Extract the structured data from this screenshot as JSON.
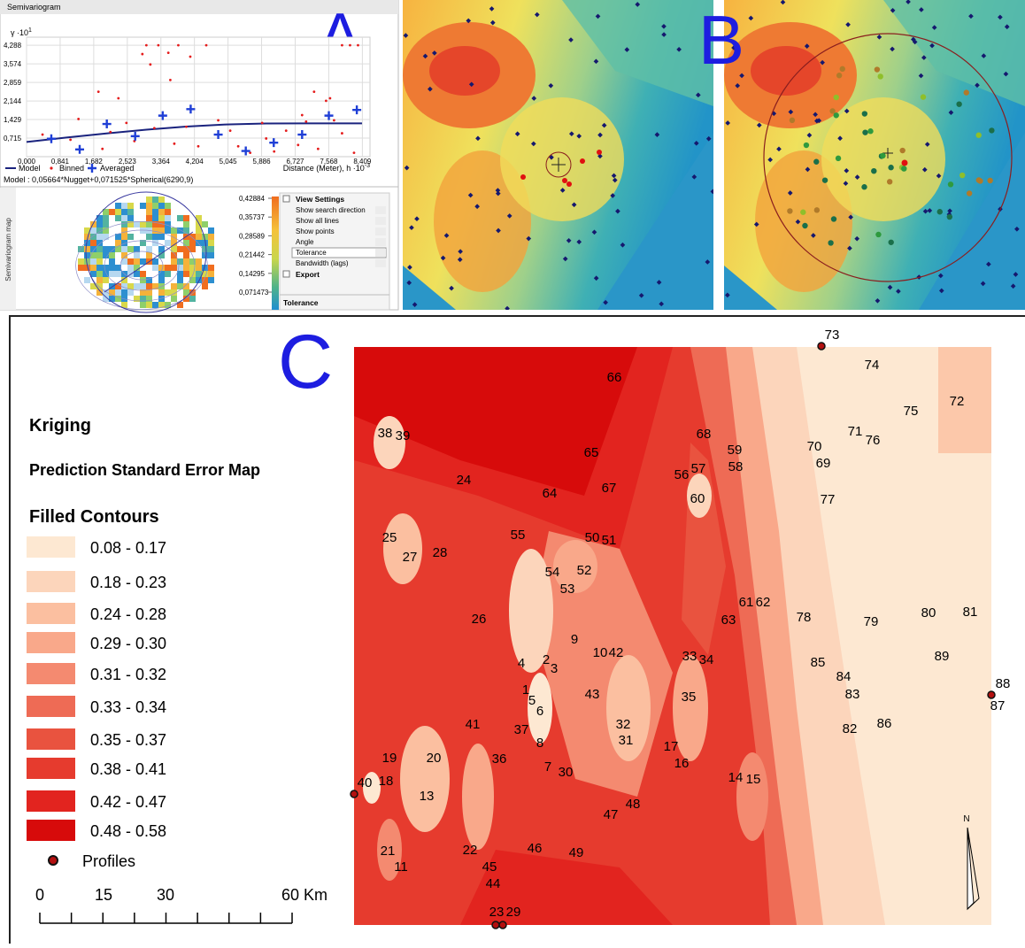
{
  "panel_letters": {
    "a": "A",
    "b": "B",
    "c": "C"
  },
  "chart_data": {
    "type": "scatter",
    "title": "Semivariogram",
    "ylabel": "γ ·10",
    "ylabel_exponent": "1",
    "xlabel": "Distance (Meter), h ·10",
    "xlabel_exponent": "-3",
    "xlim": [
      0,
      8.6
    ],
    "ylim": [
      0,
      4.6
    ],
    "grid": true,
    "xticks": [
      {
        "value": 0,
        "label": "0,000"
      },
      {
        "value": 0.841,
        "label": "0,841"
      },
      {
        "value": 1.682,
        "label": "1,682"
      },
      {
        "value": 2.523,
        "label": "2,523"
      },
      {
        "value": 3.364,
        "label": "3,364"
      },
      {
        "value": 4.204,
        "label": "4,204"
      },
      {
        "value": 5.045,
        "label": "5,045"
      },
      {
        "value": 5.886,
        "label": "5,886"
      },
      {
        "value": 6.727,
        "label": "6,727"
      },
      {
        "value": 7.568,
        "label": "7,568"
      },
      {
        "value": 8.409,
        "label": "8,409"
      }
    ],
    "yticks": [
      {
        "value": 0.715,
        "label": "0,715"
      },
      {
        "value": 1.429,
        "label": "1,429"
      },
      {
        "value": 2.144,
        "label": "2,144"
      },
      {
        "value": 2.859,
        "label": "2,859"
      },
      {
        "value": 3.574,
        "label": "3,574"
      },
      {
        "value": 4.288,
        "label": "4,288"
      }
    ],
    "series": [
      {
        "name": "Model",
        "color": "#1a237e",
        "x": [
          0,
          1,
          2,
          3,
          4,
          5,
          6,
          7,
          8.4
        ],
        "values": [
          0.5664,
          0.7355,
          0.896,
          1.0393,
          1.1567,
          1.2396,
          1.2794,
          1.2817,
          1.2817
        ]
      },
      {
        "name": "Binned",
        "color": "#e51c1c",
        "x": [
          3.0,
          3.3,
          3.8,
          4.5,
          7.9,
          8.1,
          8.3,
          2.9,
          3.55,
          4.1,
          3.1,
          1.8,
          2.3,
          3.6,
          7.2,
          7.5,
          7.6,
          1.3,
          2.5,
          3.2,
          4.0,
          5.1,
          5.9,
          6.5,
          7.0,
          7.7,
          7.9,
          0.4,
          1.1,
          1.9,
          2.7,
          3.7,
          4.3,
          5.3,
          5.6,
          6.2,
          6.8,
          7.3,
          8.2,
          4.8,
          6.0,
          2.1,
          6.9
        ],
        "values": [
          4.288,
          4.288,
          4.288,
          4.288,
          4.288,
          4.288,
          4.288,
          3.95,
          4.0,
          3.85,
          3.55,
          2.5,
          2.25,
          2.95,
          2.5,
          2.15,
          2.25,
          1.45,
          1.3,
          1.1,
          1.15,
          1.0,
          1.3,
          1.0,
          1.35,
          1.4,
          0.9,
          0.85,
          0.65,
          0.3,
          0.6,
          0.5,
          0.4,
          0.4,
          0.15,
          0.2,
          0.45,
          0.3,
          0.15,
          1.4,
          0.7,
          0.95,
          1.6
        ]
      },
      {
        "name": "Averaged",
        "color": "#1f3fd6",
        "x": [
          0.62,
          1.33,
          2.01,
          2.72,
          3.41,
          4.11,
          4.8,
          5.49,
          6.19,
          6.9,
          7.57,
          8.27
        ],
        "values": [
          0.69,
          0.28,
          1.26,
          0.79,
          1.58,
          1.83,
          0.85,
          0.22,
          0.54,
          0.85,
          1.58,
          1.8
        ]
      }
    ],
    "model_text": "Model : 0,05664*Nugget+0,071525*Spherical(6290,9)"
  },
  "semivariogram_map": {
    "title": "Semivariogram map",
    "colorbar": [
      {
        "value": 0.42884,
        "label": "0,42884"
      },
      {
        "value": 0.35737,
        "label": "0,35737"
      },
      {
        "value": 0.28589,
        "label": "0,28589"
      },
      {
        "value": 0.21442,
        "label": "0,21442"
      },
      {
        "value": 0.14295,
        "label": "0,14295"
      },
      {
        "value": 0.071473,
        "label": "0,071473"
      }
    ]
  },
  "view_settings": {
    "header": "View Settings",
    "items": [
      "Show search direction",
      "Show all lines",
      "Show points",
      "Angle",
      "Tolerance",
      "Bandwidth (lags)"
    ],
    "export": "Export",
    "footer": "Tolerance"
  },
  "map": {
    "title": "Kriging",
    "subtitle": "Prediction Standard Error Map",
    "legend_title": "Filled Contours",
    "classes": [
      {
        "label": "0.08 - 0.17",
        "color": "#fde8d2"
      },
      {
        "label": "0.18 - 0.23",
        "color": "#fcd5bb"
      },
      {
        "label": "0.24 - 0.28",
        "color": "#fbbfa0"
      },
      {
        "label": "0.29 - 0.30",
        "color": "#f9a88a"
      },
      {
        "label": "0.31 - 0.32",
        "color": "#f48a70"
      },
      {
        "label": "0.33 - 0.34",
        "color": "#ee6b55"
      },
      {
        "label": "0.35 - 0.37",
        "color": "#e9533f"
      },
      {
        "label": "0.38 - 0.41",
        "color": "#e63b2e"
      },
      {
        "label": "0.42 - 0.47",
        "color": "#e2241f"
      },
      {
        "label": "0.48 - 0.58",
        "color": "#d70b0b"
      }
    ],
    "profiles_label": "Profiles",
    "scale_labels": [
      "0",
      "15",
      "30",
      "60 Km"
    ],
    "north": "N",
    "profile_labels": [
      "73",
      "74",
      "66",
      "75",
      "72",
      "68",
      "71",
      "76",
      "70",
      "59",
      "65",
      "69",
      "58",
      "38",
      "39",
      "56",
      "57",
      "24",
      "67",
      "64",
      "60",
      "77",
      "25",
      "55",
      "50",
      "51",
      "27",
      "28",
      "54",
      "52",
      "53",
      "61",
      "62",
      "63",
      "78",
      "79",
      "80",
      "81",
      "26",
      "9",
      "10",
      "42",
      "33",
      "34",
      "89",
      "85",
      "4",
      "2",
      "3",
      "84",
      "88",
      "1",
      "5",
      "43",
      "35",
      "83",
      "87",
      "6",
      "41",
      "37",
      "32",
      "86",
      "82",
      "8",
      "31",
      "17",
      "19",
      "20",
      "36",
      "16",
      "7",
      "30",
      "14",
      "15",
      "40",
      "18",
      "13",
      "48",
      "47",
      "46",
      "49",
      "22",
      "21",
      "11",
      "45",
      "44",
      "23",
      "29"
    ]
  }
}
